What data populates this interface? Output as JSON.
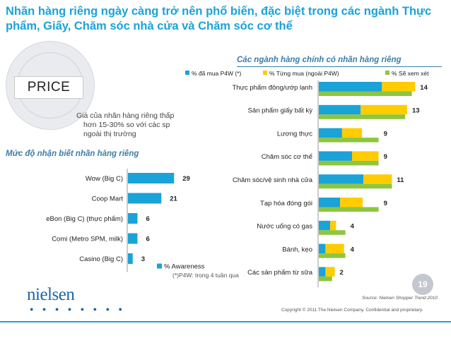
{
  "slide": {
    "title": "Nhãn hàng riêng ngày càng trở nên phổ biến, đặc biệt trong các ngành Thực phẩm, Giấy, Chăm sóc nhà cửa và Chăm sóc cơ thể",
    "price_label": "PRICE",
    "price_desc": [
      "Giá của nhãn hàng riêng thấp",
      "hơn 15-30% so với các sp",
      "ngoài thị trường"
    ],
    "awareness_title": "Mức độ nhận biết nhãn hàng riêng",
    "categories_title": "Các ngành hàng chính có nhãn hàng riêng",
    "footnote": "(*)P4W: trong 4 tuần qua",
    "source": "Source: Nielsen Shopper Trend 2010",
    "copyright": "Copyright © 2011 The Nielsen Company. Confidential and proprietary.",
    "logo": "nielsen",
    "logo_dots": "● ● ● ● ● ● ● ●",
    "page_number": "19",
    "colors": {
      "blue": "#1aa3d9",
      "yellow": "#ffcc00",
      "green": "#8cc63f",
      "title": "#1aa3d9"
    }
  },
  "chart_data": [
    {
      "type": "bar",
      "orientation": "horizontal",
      "categories": [
        "Wow (Big C)",
        "Coop Mart",
        "eBon (Big C) (thực phẩm)",
        "Comi (Metro SPM, milk)",
        "Casino (Big C)"
      ],
      "series": [
        {
          "name": "% Awareness",
          "values": [
            29,
            21,
            6,
            6,
            3
          ]
        }
      ],
      "legend": "bottom"
    },
    {
      "type": "bar",
      "orientation": "horizontal",
      "categories": [
        "Thực phẩm đông/ướp lạnh",
        "Sản phẩm giấy bất kỳ",
        "Lương thực",
        "Chăm sóc cơ thể",
        "Chăm sóc/vệ sinh nhà cửa",
        "Tạp hóa đóng gói",
        "Nước uống có gas",
        "Bánh, kẹo",
        "Các sản phẩm từ sữa"
      ],
      "series": [
        {
          "name": "% đã mua P4W (*)",
          "values": [
            9.5,
            6.3,
            3.5,
            5.0,
            6.7,
            3.2,
            1.7,
            1.0,
            1.0
          ]
        },
        {
          "name": "% Từng mua (ngoài P4W)",
          "values": [
            5.0,
            7.0,
            3.0,
            4.0,
            4.3,
            3.4,
            0.9,
            2.8,
            1.4
          ]
        },
        {
          "name": "% Sẽ xem xét",
          "values": [
            14,
            13,
            9,
            9,
            11,
            9,
            4,
            4,
            2
          ]
        }
      ],
      "data_labels": [
        "14",
        "13",
        "9",
        "9",
        "11",
        "9",
        "4",
        "4",
        "2"
      ],
      "legend": "top"
    }
  ]
}
